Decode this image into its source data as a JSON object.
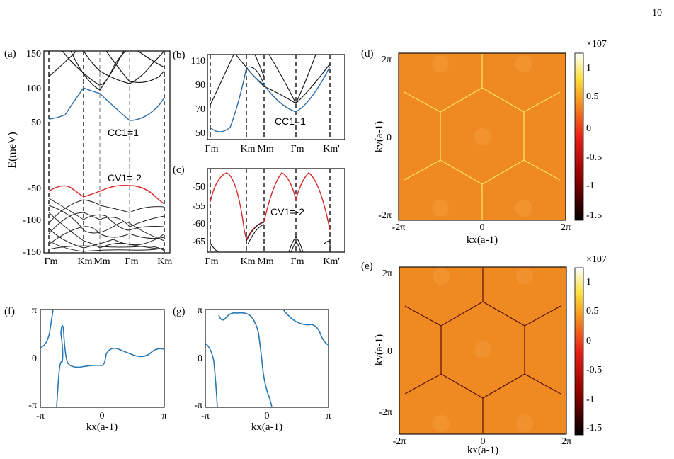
{
  "page_number": "10",
  "colors": {
    "conduction_band": "#2e6da4",
    "valence_band": "#d62728",
    "other_bands": "#111111",
    "line_curve": "#2878b5",
    "heatmap_background": "#ef8a22",
    "dashed_lines": "#111111"
  },
  "panels": {
    "a": {
      "label": "(a)",
      "ylabel": "E(meV)",
      "yticks": [
        "150",
        "100",
        "50",
        "-50",
        "-100",
        "-150"
      ],
      "xticks": [
        "Γm",
        "Km",
        "Mm",
        "Γm",
        "Km'"
      ],
      "annotations": [
        "CC1=1",
        "CV1=-2"
      ]
    },
    "b": {
      "label": "(b)",
      "yticks": [
        "110",
        "90",
        "70",
        "50"
      ],
      "xticks": [
        "Γm",
        "Km",
        "Mm",
        "Γm",
        "Km'"
      ],
      "annotation": "CC1=1"
    },
    "c": {
      "label": "(c)",
      "yticks": [
        "-50",
        "-55",
        "-60",
        "-65"
      ],
      "xticks": [
        "Γm",
        "Km",
        "Mm",
        "Γm",
        "Km'"
      ],
      "annotation": "CV1=-2"
    },
    "d": {
      "label": "(d)",
      "xlabel": "kx(a-1)",
      "ylabel": "ky(a-1)",
      "ticks": [
        "-2π",
        "0",
        "2π"
      ],
      "colorbar": {
        "exponent": "×107",
        "ticks": [
          "1",
          "0.5",
          "0",
          "-0.5",
          "-1",
          "-1.5"
        ]
      }
    },
    "e": {
      "label": "(e)",
      "xlabel": "kx(a-1)",
      "ylabel": "ky(a-1)",
      "ticks": [
        "-2π",
        "0",
        "2π"
      ],
      "colorbar": {
        "exponent": "×107",
        "ticks": [
          "1",
          "0.5",
          "0",
          "-0.5",
          "-1",
          "-1.5"
        ]
      }
    },
    "f": {
      "label": "(f)",
      "xlabel": "kx(a-1)",
      "xticks": [
        "-π",
        "0",
        "π"
      ],
      "yticks": [
        "π",
        "0",
        "-π"
      ]
    },
    "g": {
      "label": "(g)",
      "xlabel": "kx(a-1)",
      "xticks": [
        "-π",
        "0",
        "π"
      ],
      "yticks": [
        "π",
        "0",
        "-π"
      ]
    }
  },
  "chart_data": [
    {
      "panel": "a",
      "type": "line",
      "ylabel": "E(meV)",
      "ylim": [
        -150,
        150
      ],
      "x_ticks": [
        "Γm",
        "Km",
        "Mm",
        "Γm",
        "Km'"
      ],
      "series": [
        {
          "values": [
            [
              0,
              55
            ],
            [
              0.3,
              58
            ],
            [
              0.5,
              88
            ],
            [
              0.65,
              100
            ],
            [
              0.8,
              88
            ],
            [
              1.0,
              65
            ],
            [
              1.3,
              55
            ],
            [
              1.6,
              50
            ],
            [
              1.8,
              65
            ],
            [
              2.0,
              80
            ]
          ]
        },
        {
          "values": [
            [
              0,
              -50
            ],
            [
              0.3,
              -45
            ],
            [
              0.6,
              -60
            ],
            [
              1.0,
              -55
            ],
            [
              1.35,
              -45
            ],
            [
              1.7,
              -45
            ],
            [
              2.0,
              -60
            ]
          ]
        }
      ]
    },
    {
      "panel": "b",
      "type": "line",
      "ylim": [
        45,
        110
      ],
      "x_ticks": [
        "Γm",
        "Km",
        "Mm",
        "Γm",
        "Km'"
      ],
      "series": [
        {
          "values": [
            [
              0,
              55
            ],
            [
              0.25,
              50
            ],
            [
              0.5,
              55
            ],
            [
              0.8,
              100
            ],
            [
              1.0,
              95
            ],
            [
              1.3,
              70
            ],
            [
              1.6,
              52
            ],
            [
              1.9,
              75
            ],
            [
              2.2,
              100
            ]
          ]
        }
      ]
    },
    {
      "panel": "c",
      "type": "line",
      "ylim": [
        -67,
        -46
      ],
      "x_ticks": [
        "Γm",
        "Km",
        "Mm",
        "Γm",
        "Km'"
      ],
      "series": [
        {
          "values": [
            [
              0,
              -53
            ],
            [
              0.3,
              -46
            ],
            [
              0.6,
              -55
            ],
            [
              0.8,
              -64
            ],
            [
              1.0,
              -60
            ],
            [
              1.3,
              -50
            ],
            [
              1.55,
              -46
            ],
            [
              1.7,
              -52
            ],
            [
              1.9,
              -46
            ],
            [
              2.1,
              -55
            ],
            [
              2.2,
              -63
            ]
          ]
        }
      ]
    },
    {
      "panel": "f",
      "type": "line",
      "xlim": [
        -3.1416,
        3.1416
      ],
      "ylim": [
        -3.1416,
        3.1416
      ],
      "series": [
        {
          "values": [
            [
              -3.14,
              0.3
            ],
            [
              -2.9,
              0.7
            ],
            [
              -2.7,
              3.1
            ]
          ]
        },
        {
          "values": [
            [
              -2.3,
              -3.14
            ],
            [
              -2.2,
              -1.5
            ],
            [
              -2.0,
              -0.6
            ],
            [
              -1.8,
              0.0
            ],
            [
              -1.6,
              0.5
            ],
            [
              -1.45,
              1.6
            ],
            [
              -1.35,
              0.2
            ],
            [
              -1.0,
              -0.5
            ],
            [
              -0.5,
              -0.5
            ],
            [
              0.2,
              -0.3
            ],
            [
              0.4,
              0.2
            ],
            [
              0.6,
              0.6
            ],
            [
              1.0,
              0.5
            ],
            [
              1.6,
              0.2
            ],
            [
              2.1,
              0.0
            ],
            [
              2.6,
              0.2
            ],
            [
              3.14,
              0.2
            ]
          ]
        }
      ]
    },
    {
      "panel": "g",
      "type": "line",
      "xlim": [
        -3.1416,
        3.1416
      ],
      "ylim": [
        -3.1416,
        3.1416
      ],
      "series": [
        {
          "values": [
            [
              -3.14,
              0.6
            ],
            [
              -2.9,
              0.2
            ],
            [
              -2.8,
              -1.5
            ],
            [
              -2.7,
              -3.1
            ]
          ]
        },
        {
          "values": [
            [
              -2.9,
              2.8
            ],
            [
              -2.8,
              2.5
            ],
            [
              -2.5,
              2.6
            ],
            [
              -2.0,
              3.0
            ],
            [
              -1.4,
              2.9
            ],
            [
              -0.8,
              2.3
            ],
            [
              -0.5,
              1.5
            ],
            [
              -0.3,
              0.0
            ],
            [
              -0.1,
              -1.5
            ],
            [
              0.1,
              -2.6
            ],
            [
              0.3,
              -3.14
            ]
          ]
        },
        {
          "values": [
            [
              1.0,
              3.14
            ],
            [
              1.5,
              2.3
            ],
            [
              2.1,
              2.2
            ],
            [
              2.5,
              2.0
            ],
            [
              2.8,
              1.0
            ],
            [
              3.14,
              0.8
            ]
          ]
        }
      ]
    }
  ]
}
